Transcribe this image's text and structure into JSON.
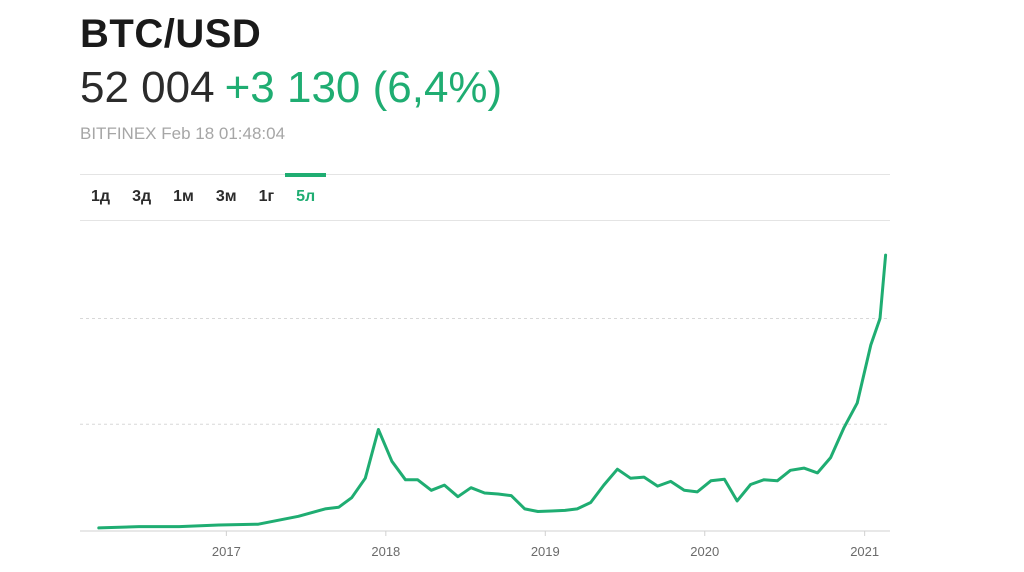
{
  "header": {
    "title": "BTC/USD",
    "price": "52 004",
    "change": "+3 130 (6,4%)",
    "meta": "BITFINEX Feb 18 01:48:04"
  },
  "tabs": [
    {
      "label": "1д",
      "active": false
    },
    {
      "label": "3д",
      "active": false
    },
    {
      "label": "1м",
      "active": false
    },
    {
      "label": "3м",
      "active": false
    },
    {
      "label": "1г",
      "active": false
    },
    {
      "label": "5л",
      "active": true
    }
  ],
  "colors": {
    "line": "#1fad72",
    "grid": "#d8d8d8",
    "axis": "#d0d0d0"
  },
  "chart_data": {
    "type": "line",
    "title": "",
    "xlabel": "",
    "ylabel": "",
    "x_ticks": [
      "2017",
      "2018",
      "2019",
      "2020",
      "2021"
    ],
    "ylim": [
      0,
      57500
    ],
    "x": [
      "2016-03",
      "2016-06",
      "2016-09",
      "2016-12",
      "2017-03",
      "2017-06",
      "2017-08",
      "2017-09",
      "2017-10",
      "2017-11",
      "2017-12",
      "2018-01",
      "2018-02",
      "2018-03",
      "2018-04",
      "2018-05",
      "2018-06",
      "2018-07",
      "2018-08",
      "2018-09",
      "2018-10",
      "2018-11",
      "2018-12",
      "2019-01",
      "2019-02",
      "2019-03",
      "2019-04",
      "2019-05",
      "2019-06",
      "2019-07",
      "2019-08",
      "2019-09",
      "2019-10",
      "2019-11",
      "2019-12",
      "2020-01",
      "2020-02",
      "2020-03",
      "2020-04",
      "2020-05",
      "2020-06",
      "2020-07",
      "2020-08",
      "2020-09",
      "2020-10",
      "2020-11",
      "2020-12",
      "2021-01",
      "2021-02-05",
      "2021-02-18"
    ],
    "series": [
      {
        "values": [
          400,
          650,
          650,
          950,
          1100,
          2600,
          4000,
          4300,
          6100,
          9800,
          19000,
          13000,
          9500,
          9500,
          7500,
          8500,
          6300,
          8000,
          7000,
          6800,
          6500,
          4000,
          3500,
          3600,
          3700,
          4000,
          5200,
          8500,
          11500,
          9800,
          10000,
          8300,
          9200,
          7500,
          7200,
          9300,
          9600,
          5500,
          8600,
          9500,
          9300,
          11300,
          11700,
          10800,
          13700,
          19400,
          24000,
          35000,
          40000,
          52004
        ]
      }
    ]
  }
}
